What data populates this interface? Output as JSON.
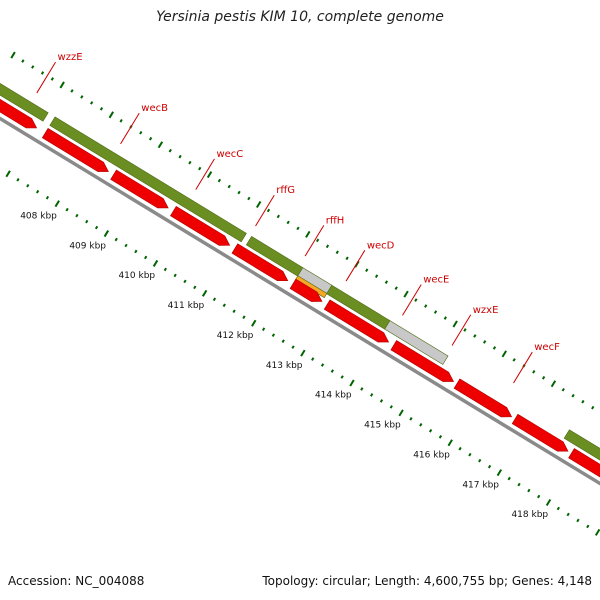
{
  "title": "Yersinia pestis KIM 10, complete genome",
  "footer": {
    "accession": "Accession: NC_004088",
    "summary": "Topology: circular; Length: 4,600,755 bp; Genes: 4,148"
  },
  "colors": {
    "gene_green": "#6b8e23",
    "gene_green_light": "#9ab54a",
    "cds_red": "#ee0000",
    "cds_red_dark": "#b00000",
    "gray": "#c8c8c8",
    "orange": "#f5a623",
    "tick_green": "#006400",
    "label_red": "#cc0000",
    "backbone": "#8a8a8a"
  },
  "gene_labels": [
    "wzzE",
    "wecB",
    "wecC",
    "rffG",
    "rffH",
    "wecD",
    "wecE",
    "wzxE",
    "wecF"
  ],
  "scale_labels": [
    "408 kbp",
    "409 kbp",
    "410 kbp",
    "411 kbp",
    "412 kbp",
    "413 kbp",
    "414 kbp",
    "415 kbp",
    "416 kbp",
    "417 kbp",
    "418 kbp"
  ]
}
